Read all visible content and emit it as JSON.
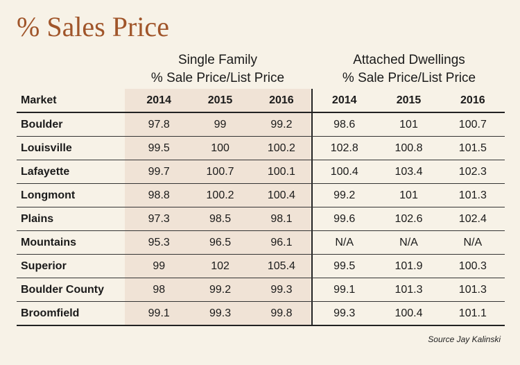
{
  "title": "% Sales Price",
  "groups": [
    {
      "line1": "Single Family",
      "line2": "% Sale Price/List Price"
    },
    {
      "line1": "Attached Dwellings",
      "line2": "% Sale Price/List Price"
    }
  ],
  "columns": [
    "Market",
    "2014",
    "2015",
    "2016",
    "2014",
    "2015",
    "2016"
  ],
  "rows": [
    [
      "Boulder",
      "97.8",
      "99",
      "99.2",
      "98.6",
      "101",
      "100.7"
    ],
    [
      "Louisville",
      "99.5",
      "100",
      "100.2",
      "102.8",
      "100.8",
      "101.5"
    ],
    [
      "Lafayette",
      "99.7",
      "100.7",
      "100.1",
      "100.4",
      "103.4",
      "102.3"
    ],
    [
      "Longmont",
      "98.8",
      "100.2",
      "100.4",
      "99.2",
      "101",
      "101.3"
    ],
    [
      "Plains",
      "97.3",
      "98.5",
      "98.1",
      "99.6",
      "102.6",
      "102.4"
    ],
    [
      "Mountains",
      "95.3",
      "96.5",
      "96.1",
      "N/A",
      "N/A",
      "N/A"
    ],
    [
      "Superior",
      "99",
      "102",
      "105.4",
      "99.5",
      "101.9",
      "100.3"
    ],
    [
      "Boulder County",
      "98",
      "99.2",
      "99.3",
      "99.1",
      "101.3",
      "101.3"
    ],
    [
      "Broomfield",
      "99.1",
      "99.3",
      "99.8",
      "99.3",
      "100.4",
      "101.1"
    ]
  ],
  "source": "Source Jay Kalinski",
  "colors": {
    "title": "#a0552a",
    "background": "#f7f2e7",
    "shade": "#f0e3d6"
  }
}
